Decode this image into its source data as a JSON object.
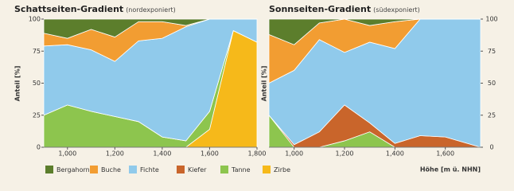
{
  "chart_data": [
    {
      "type": "area",
      "stacked": true,
      "title": "Schattseiten-Gradient",
      "subtitle": "(nordexponiert)",
      "y_label": "Anteil [%]",
      "x": [
        900,
        1000,
        1100,
        1200,
        1300,
        1400,
        1500,
        1600,
        1700,
        1800
      ],
      "xlim": [
        900,
        1800
      ],
      "xticks": [
        {
          "value": 1000,
          "label": "1,000"
        },
        {
          "value": 1200,
          "label": "1,200"
        },
        {
          "value": 1400,
          "label": "1,400"
        },
        {
          "value": 1600,
          "label": "1,600"
        },
        {
          "value": 1800,
          "label": "1,800"
        }
      ],
      "ylim": [
        0,
        100
      ],
      "yticks": [
        0,
        25,
        50,
        75,
        100
      ],
      "y_axis_side": "left",
      "series": [
        {
          "name": "Zirbe",
          "color": "#f6b91a",
          "values": [
            0,
            0,
            0,
            0,
            0,
            0,
            0,
            14,
            91,
            82
          ]
        },
        {
          "name": "Tanne",
          "color": "#8dc54e",
          "values": [
            25,
            33,
            28,
            24,
            20,
            8,
            5,
            14,
            0,
            0
          ]
        },
        {
          "name": "Kiefer",
          "color": "#c9652b",
          "values": [
            0,
            0,
            0,
            0,
            0,
            0,
            0,
            0,
            0,
            0
          ]
        },
        {
          "name": "Fichte",
          "color": "#90caeb",
          "values": [
            54,
            47,
            48,
            43,
            63,
            77,
            89,
            72,
            9,
            18
          ]
        },
        {
          "name": "Buche",
          "color": "#f29d32",
          "values": [
            10,
            5,
            16,
            19,
            15,
            13,
            1,
            0,
            0,
            0
          ]
        },
        {
          "name": "Bergahorn",
          "color": "#5c7e2c",
          "values": [
            11,
            15,
            8,
            14,
            2,
            2,
            5,
            0,
            0,
            0
          ]
        }
      ]
    },
    {
      "type": "area",
      "stacked": true,
      "title": "Sonnseiten-Gradient",
      "subtitle": "(südexponiert)",
      "y_label": "Anteil [%]",
      "x_label": "Höhe [m ü. NHN]",
      "x": [
        900,
        1000,
        1100,
        1200,
        1300,
        1400,
        1500,
        1600,
        1740
      ],
      "xlim": [
        900,
        1740
      ],
      "xticks": [
        {
          "value": 1000,
          "label": "1,000"
        },
        {
          "value": 1200,
          "label": "1,200"
        },
        {
          "value": 1400,
          "label": "1,400"
        },
        {
          "value": 1600,
          "label": "1,600"
        }
      ],
      "ylim": [
        0,
        100
      ],
      "yticks": [
        0,
        25,
        50,
        75,
        100
      ],
      "y_axis_side": "right",
      "series": [
        {
          "name": "Zirbe",
          "color": "#f6b91a",
          "values": [
            0,
            0,
            0,
            0,
            0,
            0,
            0,
            0,
            0
          ]
        },
        {
          "name": "Tanne",
          "color": "#8dc54e",
          "values": [
            25,
            0,
            0,
            5,
            12,
            0,
            0,
            0,
            0
          ]
        },
        {
          "name": "Kiefer",
          "color": "#c9652b",
          "values": [
            0,
            2,
            12,
            28,
            7,
            3,
            9,
            8,
            0
          ]
        },
        {
          "name": "Fichte",
          "color": "#90caeb",
          "values": [
            25,
            58,
            72,
            41,
            63,
            74,
            91,
            92,
            100
          ]
        },
        {
          "name": "Buche",
          "color": "#f29d32",
          "values": [
            38,
            20,
            13,
            26,
            13,
            21,
            0,
            0,
            0
          ]
        },
        {
          "name": "Bergahorn",
          "color": "#5c7e2c",
          "values": [
            12,
            20,
            3,
            0,
            5,
            2,
            0,
            0,
            0
          ]
        }
      ]
    }
  ]
}
